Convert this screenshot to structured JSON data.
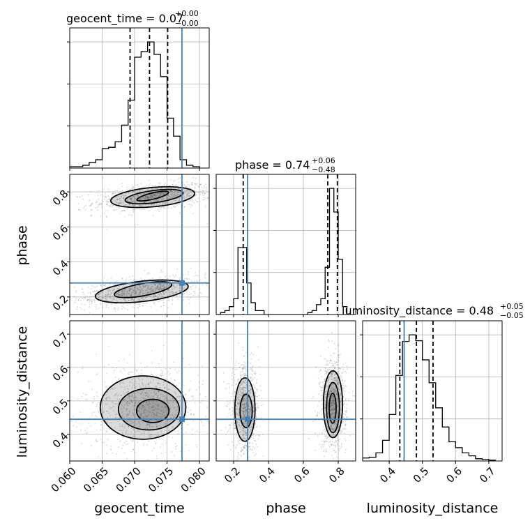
{
  "truth_color": "#4682b4",
  "chart_data": {
    "type": "corner",
    "parameters": [
      "geocent_time",
      "phase",
      "luminosity_distance"
    ],
    "titles": [
      {
        "name": "geocent_time",
        "value": "0.07",
        "plus": "+0.00",
        "minus": "−0.00"
      },
      {
        "name": "phase",
        "value": "0.74",
        "plus": "+0.06",
        "minus": "−0.48"
      },
      {
        "name": "luminosity_distance",
        "value": "0.48",
        "plus": "+0.05",
        "minus": "−0.05"
      }
    ],
    "axis_ranges": {
      "geocent_time": [
        0.06,
        0.0815
      ],
      "phase": [
        0.1,
        0.9
      ],
      "luminosity_distance": [
        0.32,
        0.74
      ]
    },
    "ticks": {
      "geocent_time": [
        "0.060",
        "0.065",
        "0.070",
        "0.075",
        "0.080"
      ],
      "phase": [
        "0.2",
        "0.4",
        "0.6",
        "0.8"
      ],
      "luminosity_distance": [
        "0.4",
        "0.5",
        "0.6",
        "0.7"
      ]
    },
    "truths": {
      "geocent_time": 0.0773,
      "phase": 0.28,
      "luminosity_distance": 0.445
    },
    "quantiles": {
      "geocent_time": [
        0.0693,
        0.0723,
        0.0751
      ],
      "phase": [
        0.255,
        0.74,
        0.795
      ],
      "luminosity_distance": [
        0.432,
        0.482,
        0.532
      ]
    },
    "histograms": {
      "geocent_time": {
        "edges": [
          0.06,
          0.061,
          0.062,
          0.063,
          0.064,
          0.065,
          0.066,
          0.067,
          0.068,
          0.069,
          0.07,
          0.071,
          0.072,
          0.073,
          0.074,
          0.075,
          0.076,
          0.077,
          0.078,
          0.079,
          0.08
        ],
        "counts": [
          1,
          1,
          2,
          4,
          6,
          14,
          15,
          19,
          31,
          49,
          80,
          84,
          91,
          82,
          66,
          36,
          23,
          6,
          2,
          1
        ]
      },
      "phase": {
        "edges": [
          0.1,
          0.125,
          0.15,
          0.175,
          0.2,
          0.225,
          0.25,
          0.275,
          0.3,
          0.325,
          0.35,
          0.375,
          0.4,
          0.425,
          0.45,
          0.475,
          0.5,
          0.525,
          0.55,
          0.575,
          0.6,
          0.625,
          0.65,
          0.675,
          0.7,
          0.725,
          0.75,
          0.775,
          0.8,
          0.825,
          0.85
        ],
        "counts": [
          0,
          0.5,
          1,
          2,
          4,
          17,
          17,
          8,
          3,
          1,
          1,
          0,
          0,
          0,
          0,
          0,
          0,
          0,
          0,
          0,
          0,
          0.5,
          1,
          2.5,
          4,
          12,
          32,
          26,
          14,
          2
        ]
      },
      "luminosity_distance": {
        "edges": [
          0.32,
          0.34,
          0.36,
          0.38,
          0.4,
          0.42,
          0.44,
          0.46,
          0.48,
          0.5,
          0.52,
          0.54,
          0.56,
          0.58,
          0.6,
          0.62,
          0.64,
          0.66,
          0.68,
          0.7,
          0.72
        ],
        "counts": [
          4,
          5,
          11,
          28,
          63,
          116,
          162,
          171,
          163,
          137,
          106,
          72,
          46,
          26,
          18,
          11,
          7,
          3,
          2,
          1
        ]
      }
    },
    "contours_2d": {
      "phase_vs_geocent_time": [
        {
          "center": [
            0.0728,
            0.77
          ],
          "radii": [
            0.0065,
            0.055
          ],
          "tilt": 0.022
        },
        {
          "center": [
            0.073,
            0.773
          ],
          "radii": [
            0.0045,
            0.035
          ],
          "tilt": 0.022
        },
        {
          "center": [
            0.0728,
            0.776
          ],
          "radii": [
            0.0025,
            0.018
          ],
          "tilt": 0.022
        },
        {
          "center": [
            0.0711,
            0.232
          ],
          "radii": [
            0.0072,
            0.058
          ],
          "tilt": 0.03
        },
        {
          "center": [
            0.0713,
            0.242
          ],
          "radii": [
            0.0045,
            0.035
          ],
          "tilt": 0.03
        }
      ],
      "luminosity_distance_vs_geocent_time": [
        {
          "center": [
            0.0713,
            0.48
          ],
          "radii": [
            0.0066,
            0.095
          ],
          "tilt": 0
        },
        {
          "center": [
            0.0722,
            0.475
          ],
          "radii": [
            0.0047,
            0.062
          ],
          "tilt": 0
        },
        {
          "center": [
            0.0728,
            0.47
          ],
          "radii": [
            0.0025,
            0.035
          ],
          "tilt": 0
        }
      ],
      "luminosity_distance_vs_phase": [
        {
          "center": [
            0.265,
            0.474
          ],
          "radii": [
            0.058,
            0.095
          ],
          "tilt": 0
        },
        {
          "center": [
            0.272,
            0.47
          ],
          "radii": [
            0.035,
            0.05
          ],
          "tilt": 0
        },
        {
          "center": [
            0.77,
            0.49
          ],
          "radii": [
            0.055,
            0.1
          ],
          "tilt": 0
        },
        {
          "center": [
            0.77,
            0.48
          ],
          "radii": [
            0.037,
            0.075
          ],
          "tilt": 0
        },
        {
          "center": [
            0.768,
            0.478
          ],
          "radii": [
            0.02,
            0.045
          ],
          "tilt": 0
        }
      ]
    }
  }
}
